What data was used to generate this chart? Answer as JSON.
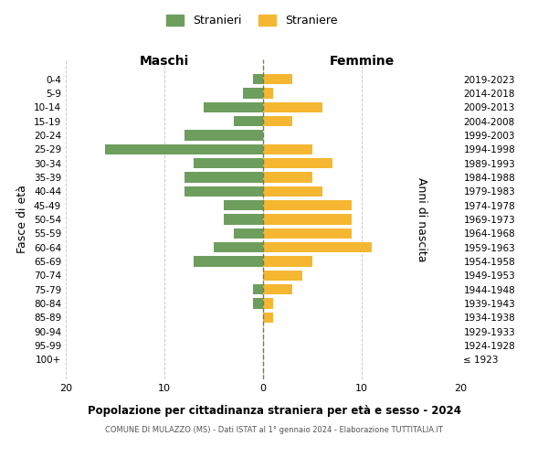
{
  "age_groups": [
    "0-4",
    "5-9",
    "10-14",
    "15-19",
    "20-24",
    "25-29",
    "30-34",
    "35-39",
    "40-44",
    "45-49",
    "50-54",
    "55-59",
    "60-64",
    "65-69",
    "70-74",
    "75-79",
    "80-84",
    "85-89",
    "90-94",
    "95-99",
    "100+"
  ],
  "birth_years": [
    "2019-2023",
    "2014-2018",
    "2009-2013",
    "2004-2008",
    "1999-2003",
    "1994-1998",
    "1989-1993",
    "1984-1988",
    "1979-1983",
    "1974-1978",
    "1969-1973",
    "1964-1968",
    "1959-1963",
    "1954-1958",
    "1949-1953",
    "1944-1948",
    "1939-1943",
    "1934-1938",
    "1929-1933",
    "1924-1928",
    "≤ 1923"
  ],
  "maschi": [
    1,
    2,
    6,
    3,
    8,
    16,
    7,
    8,
    8,
    4,
    4,
    3,
    5,
    7,
    0,
    1,
    1,
    0,
    0,
    0,
    0
  ],
  "femmine": [
    3,
    1,
    6,
    3,
    0,
    5,
    7,
    5,
    6,
    9,
    9,
    9,
    11,
    5,
    4,
    3,
    1,
    1,
    0,
    0,
    0
  ],
  "color_maschi": "#6d9e5e",
  "color_femmine": "#f5b731",
  "title_main": "Popolazione per cittadinanza straniera per età e sesso - 2024",
  "title_sub": "COMUNE DI MULAZZO (MS) - Dati ISTAT al 1° gennaio 2024 - Elaborazione TUTTITALIA.IT",
  "label_maschi_top": "Maschi",
  "label_femmine_top": "Femmine",
  "ylabel_left": "Fasce di età",
  "ylabel_right": "Anni di nascita",
  "legend_maschi": "Stranieri",
  "legend_femmine": "Straniere",
  "xlim": 20,
  "background_color": "#ffffff",
  "grid_color": "#cccccc",
  "dashed_line_color": "#7a7a50"
}
